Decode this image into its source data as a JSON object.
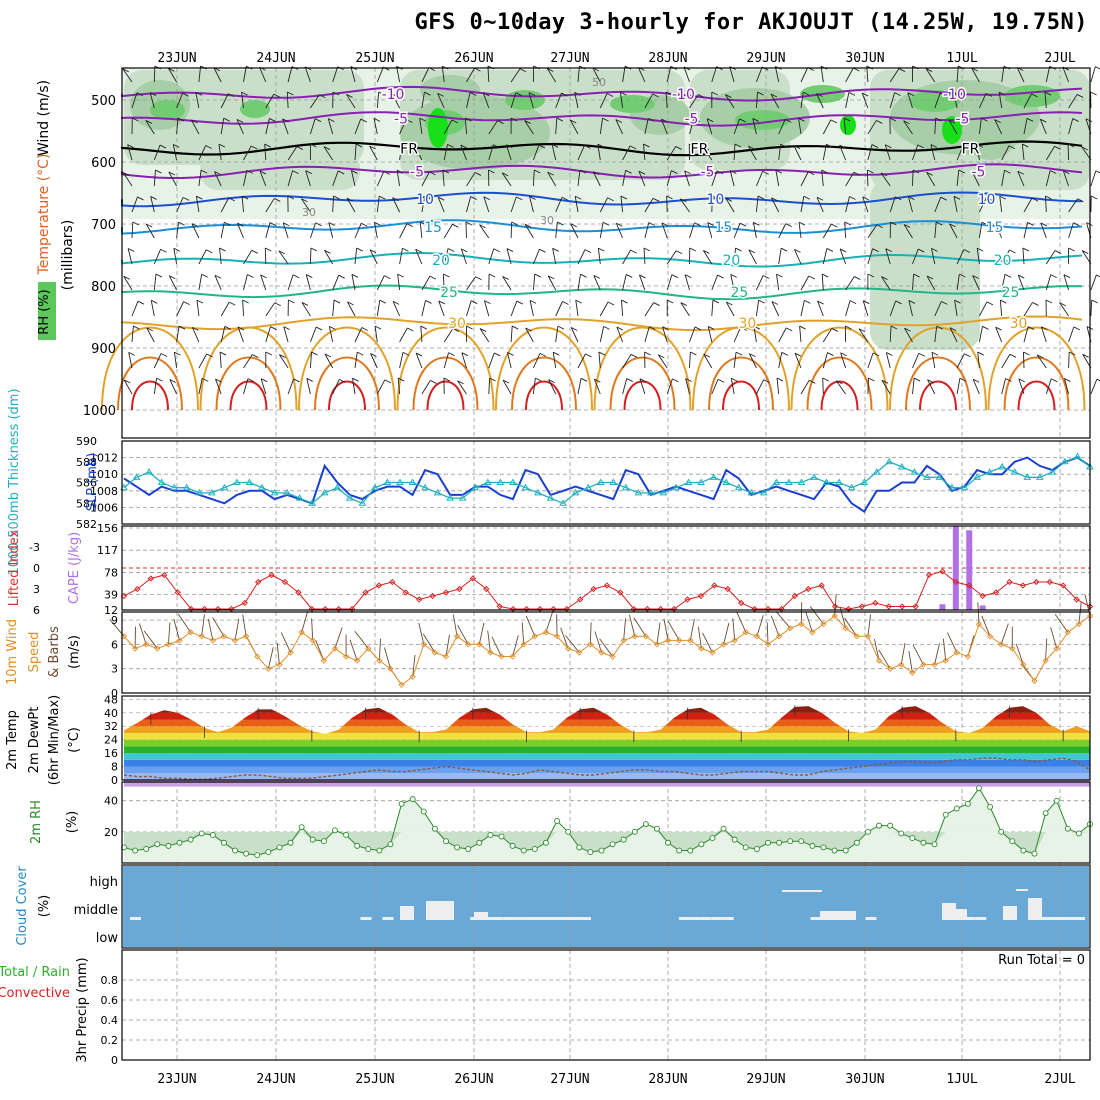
{
  "title": "GFS 0~10day 3-hourly for AKJOUJT (14.25W, 19.75N)",
  "run_total": "Run Total = 0",
  "dates": [
    "23JUN",
    "24JUN",
    "25JUN",
    "26JUN",
    "27JUN",
    "28JUN",
    "29JUN",
    "30JUN",
    "1JUL",
    "2JUL"
  ],
  "panel_labels": {
    "upper_rh": "RH (%)",
    "upper_temp": "Temperature (°C)",
    "upper_wind": "Wind (m/s)",
    "upper_mb": "(millibars)",
    "thick": "1000-500mb Thickness (dm)",
    "slp": "SLP (mb)",
    "li": "Lifted Index",
    "cape": "CAPE (J/kg)",
    "wind10": "10m Wind",
    "speed": "Speed",
    "barbs": "& Barbs",
    "ms": "(m/s)",
    "t2m": "2m Temp",
    "dew": "2m DewPt",
    "minmax": "(6hr Min/Max)",
    "degc": "(°C)",
    "rh2m": "2m RH",
    "pct": "(%)",
    "cloud": "Cloud Cover",
    "cloud_pct": "(%)",
    "precip": "3hr Precip (mm)",
    "total_rain": "Total / Rain",
    "convective": "Convective"
  },
  "chart_data": [
    {
      "type": "line",
      "name": "upper-air cross section",
      "ylabel": "(millibars)",
      "y_ticks": [
        500,
        600,
        700,
        800,
        900,
        1000
      ],
      "temp_contours": [
        {
          "label": "-10",
          "color": "#8a1fb4",
          "level_mb": 490
        },
        {
          "label": "-5",
          "color": "#8a1fb4",
          "level_mb": 530
        },
        {
          "label": "FR",
          "color": "#000000",
          "level_mb": 578
        },
        {
          "label": "-5",
          "color": "#8a1fb4",
          "level_mb": 615
        },
        {
          "label": "10",
          "color": "#1a4fd0",
          "level_mb": 660
        },
        {
          "label": "15",
          "color": "#1a8fd8",
          "level_mb": 705
        },
        {
          "label": "20",
          "color": "#17b1b8",
          "level_mb": 758
        },
        {
          "label": "25",
          "color": "#22b58a",
          "level_mb": 810
        },
        {
          "label": "30",
          "color": "#e0a22a",
          "level_mb": 860
        }
      ],
      "rh_contour_label": "50",
      "rh_contour_label2": "30"
    },
    {
      "type": "line",
      "name": "thickness and slp",
      "thickness_ticks": [
        582,
        584,
        586,
        588,
        590
      ],
      "slp_ticks": [
        1006,
        1008,
        1010,
        1012
      ],
      "series": [
        {
          "name": "SLP (mb)",
          "color": "#1a3fd0",
          "values": [
            1009.5,
            1008.5,
            1007.5,
            1008.5,
            1008,
            1008,
            1007.5,
            1007,
            1006.5,
            1007.5,
            1008,
            1008,
            1007,
            1007.5,
            1007,
            1006.5,
            1011,
            1009,
            1007.5,
            1007,
            1008,
            1008.5,
            1008.5,
            1007.5,
            1010.5,
            1010,
            1007.5,
            1007.5,
            1008.5,
            1008.5,
            1007.5,
            1007,
            1010.5,
            1010,
            1007.5,
            1008,
            1008.5,
            1008,
            1007.5,
            1007,
            1010.5,
            1010,
            1007.5,
            1008,
            1008.5,
            1008,
            1007.5,
            1007,
            1010.5,
            1009.5,
            1007.5,
            1008,
            1008.5,
            1008,
            1007.5,
            1007,
            1009,
            1008.5,
            1006.5,
            1005.5,
            1008,
            1008,
            1009,
            1009,
            1011,
            1010,
            1008,
            1008.5,
            1010.5,
            1010,
            1010,
            1011.5,
            1012,
            1011,
            1010.5,
            1011.5,
            1012,
            1011
          ]
        },
        {
          "name": "1000-500mb Thickness (dm)",
          "color": "#22b0c0",
          "values": [
            585.5,
            586.5,
            587,
            586,
            585.5,
            585.5,
            585,
            585,
            585.5,
            586,
            586,
            585.5,
            585,
            585,
            584.5,
            584,
            585,
            585.5,
            584.5,
            584,
            585.5,
            586,
            586,
            586,
            585.5,
            585,
            584.5,
            584.5,
            585.5,
            586,
            586,
            586,
            585.5,
            585,
            584.5,
            584,
            585,
            585.5,
            586,
            586,
            585.5,
            585,
            585,
            585,
            585.5,
            586,
            586,
            586.5,
            586,
            585.5,
            585,
            585,
            586,
            586,
            586,
            586.5,
            586,
            586,
            585.5,
            586,
            587,
            588,
            587.5,
            587,
            586.5,
            586.5,
            585.5,
            585.5,
            586.5,
            587,
            587.5,
            587,
            586.5,
            586.5,
            587,
            588,
            588.5,
            587.5
          ]
        }
      ]
    },
    {
      "type": "bar",
      "name": "lifted index and cape",
      "li_ticks": [
        -3,
        0,
        3,
        6
      ],
      "cape_ticks": [
        12,
        39,
        78,
        117,
        156
      ],
      "series": [
        {
          "name": "Lifted Index",
          "color": "#d82020",
          "values": [
            4,
            3,
            1.5,
            1,
            3.5,
            6,
            7,
            8,
            7,
            5,
            2,
            1,
            2,
            3.5,
            6,
            7.5,
            7.5,
            6,
            3.5,
            2.5,
            2,
            3.5,
            4.5,
            4,
            3.5,
            3,
            1.5,
            3,
            5.5,
            8,
            8.5,
            8,
            7.5,
            6,
            4.5,
            3,
            2.5,
            3.5,
            6,
            8,
            8.5,
            7,
            4.5,
            4,
            2.5,
            3,
            5,
            7.5,
            8,
            6.5,
            4,
            3,
            2.5,
            5.5,
            6,
            5.5,
            5,
            5.5,
            5.5,
            5.5,
            1,
            0.5,
            2,
            2.5,
            4,
            3.5,
            2,
            2.5,
            2,
            2,
            2.5,
            4.5,
            5.5
          ]
        },
        {
          "name": "CAPE (J/kg)",
          "color": "#b070e8",
          "values": [
            0,
            0,
            0,
            0,
            0,
            0,
            0,
            0,
            0,
            0,
            0,
            0,
            0,
            0,
            0,
            0,
            0,
            0,
            0,
            0,
            0,
            0,
            0,
            0,
            0,
            0,
            0,
            0,
            0,
            0,
            0,
            0,
            0,
            0,
            0,
            0,
            0,
            0,
            0,
            0,
            0,
            0,
            0,
            0,
            0,
            0,
            0,
            0,
            0,
            0,
            0,
            0,
            0,
            0,
            0,
            0,
            0,
            0,
            0,
            0,
            0,
            10,
            148,
            140,
            8,
            0,
            0,
            0,
            0,
            0,
            0,
            0,
            0
          ]
        }
      ]
    },
    {
      "type": "line",
      "name": "10m wind speed",
      "ylabel": "(m/s)",
      "y_ticks": [
        0,
        3,
        6,
        9
      ],
      "series": [
        {
          "name": "Speed",
          "color": "#e0902a",
          "values": [
            7,
            5.5,
            6,
            5.5,
            6,
            6.5,
            7.5,
            7,
            6.5,
            7,
            6.5,
            7,
            4.5,
            3,
            3.5,
            5,
            7.5,
            6.5,
            4,
            5.5,
            4.5,
            4,
            5.5,
            4,
            3,
            1,
            2,
            6,
            5,
            4.5,
            7,
            6,
            6,
            5,
            4.5,
            4.5,
            6,
            7,
            7.5,
            7,
            5.5,
            5,
            6,
            5,
            4.5,
            6.5,
            7,
            7,
            6,
            6.5,
            6.5,
            6.5,
            5.5,
            5,
            6,
            6.5,
            7.5,
            7,
            6,
            7,
            8,
            8.5,
            7.5,
            8.5,
            9.5,
            8,
            7,
            7,
            4,
            3,
            3.5,
            2.5,
            3.5,
            3.5,
            4,
            5,
            4.5,
            8.5,
            7,
            6,
            5.5,
            3.5,
            1.5,
            4,
            5.5,
            7.5,
            8.5,
            9.5
          ]
        }
      ]
    },
    {
      "type": "area",
      "name": "2m temperature and dewpoint",
      "ylabel": "(°C)",
      "y_ticks": [
        0,
        8,
        16,
        24,
        32,
        40,
        48
      ],
      "series": [
        {
          "name": "2m Temp",
          "color": "#5a2a20",
          "values": [
            29.5,
            34,
            39,
            41.5,
            40,
            36,
            31,
            28.5,
            31,
            37,
            42,
            42,
            38,
            33,
            29,
            27.5,
            30,
            37,
            42,
            43,
            39,
            33,
            28.5,
            28.5,
            30,
            37,
            42,
            43,
            39,
            33,
            28.5,
            28.5,
            30,
            37,
            42,
            43,
            39,
            33,
            28.5,
            28.5,
            30,
            37,
            42,
            43,
            39,
            33,
            28.5,
            28.5,
            30,
            37,
            43.5,
            44,
            40,
            34,
            29,
            28,
            30,
            38,
            43,
            44,
            40,
            34,
            29,
            28,
            31,
            38,
            43,
            44,
            40,
            33,
            29,
            32,
            29
          ]
        },
        {
          "name": "2m DewPt",
          "color": "#8a5a3a",
          "values": [
            3,
            2,
            2,
            1,
            1,
            0.5,
            0.5,
            1,
            2,
            3,
            3,
            2,
            1,
            1,
            1,
            2,
            3,
            4,
            5,
            6,
            5,
            5,
            6,
            7,
            8,
            7,
            6,
            5,
            4,
            3,
            4,
            6,
            5,
            4,
            3,
            3,
            4,
            5,
            6,
            6,
            5,
            5,
            4,
            3,
            3,
            4,
            5,
            5,
            5,
            4,
            3,
            3,
            5,
            6,
            7,
            8,
            9,
            10,
            11,
            11,
            10,
            11,
            12,
            12,
            13,
            13,
            12,
            12,
            11,
            12,
            13,
            11,
            6
          ]
        }
      ]
    },
    {
      "type": "area",
      "name": "2m relative humidity",
      "ylabel": "(%)",
      "y_ticks": [
        20,
        40
      ],
      "series": [
        {
          "name": "2m RH",
          "color": "#2b8a2b",
          "values": [
            10,
            8,
            9,
            12,
            11,
            13,
            15,
            19,
            18,
            13,
            8,
            6,
            5,
            7,
            10,
            13,
            23,
            15,
            14,
            21,
            18,
            11,
            9,
            8,
            12,
            38,
            41,
            33,
            22,
            14,
            10,
            9,
            13,
            18,
            17,
            11,
            8,
            9,
            13,
            27,
            20,
            10,
            7,
            8,
            12,
            15,
            20,
            25,
            22,
            13,
            8,
            8,
            12,
            16,
            22,
            15,
            10,
            9,
            13,
            13,
            14,
            14,
            11,
            10,
            8,
            8,
            13,
            20,
            24,
            24,
            19,
            16,
            13,
            12,
            31,
            35,
            38,
            48,
            36,
            20,
            14,
            8,
            6,
            32,
            40,
            22,
            19,
            25
          ]
        }
      ]
    },
    {
      "type": "bar",
      "name": "cloud cover",
      "y_ticks": [
        "low",
        "middle",
        "high"
      ],
      "series": [
        {
          "name": "Cloud Cover",
          "color": "#eeeeee",
          "values": [
            0,
            1,
            0,
            0,
            0,
            0,
            0,
            0,
            0,
            0,
            0,
            0,
            0,
            0,
            0,
            0,
            0,
            0,
            0,
            0,
            0,
            0,
            1,
            0,
            1,
            0,
            0,
            0,
            0,
            0,
            0,
            0,
            1,
            1,
            1,
            1,
            1,
            1,
            1,
            1,
            1,
            1,
            1,
            0,
            0,
            0,
            0,
            0,
            0,
            0,
            0,
            1,
            1,
            1,
            1,
            1,
            0,
            0,
            0,
            0,
            0,
            0,
            0,
            1,
            1,
            0,
            0,
            0,
            1,
            0,
            0,
            0,
            0,
            0,
            0,
            0,
            1,
            1,
            1,
            0,
            0,
            0,
            0,
            0,
            1,
            1,
            1,
            1,
            0
          ]
        }
      ]
    },
    {
      "type": "bar",
      "name": "3hr precipitation",
      "ylabel": "3hr Precip (mm)",
      "y_ticks": [
        0,
        0.2,
        0.4,
        0.6,
        0.8
      ],
      "series": [
        {
          "name": "Total / Rain",
          "color": "#2bb02b",
          "values": []
        },
        {
          "name": "Convective",
          "color": "#e02020",
          "values": []
        }
      ]
    }
  ]
}
